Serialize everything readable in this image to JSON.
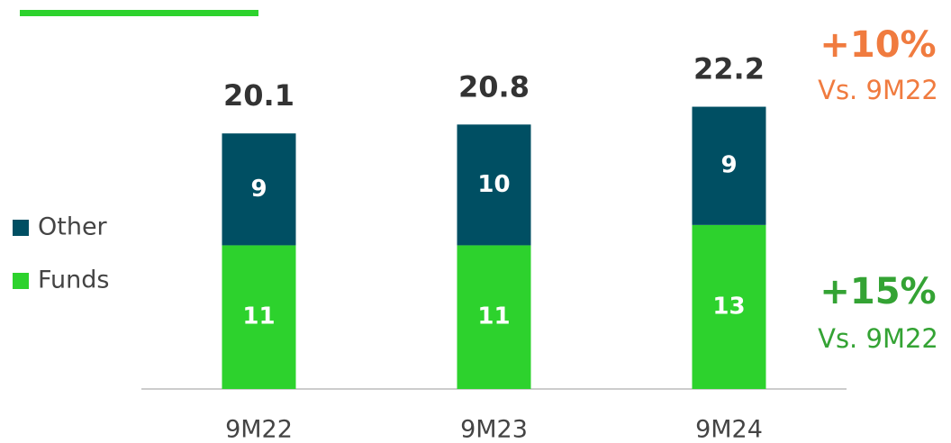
{
  "chart_data": {
    "type": "stacked_bar",
    "categories": [
      "9M22",
      "9M23",
      "9M24"
    ],
    "series": [
      {
        "name": "Funds",
        "color": "#2dd22d",
        "values": [
          11.3,
          11.3,
          12.9
        ],
        "value_labels": [
          "11",
          "11",
          "13"
        ]
      },
      {
        "name": "Other",
        "color": "#004f63",
        "values": [
          8.8,
          9.5,
          9.3
        ],
        "value_labels": [
          "9",
          "10",
          "9"
        ]
      }
    ],
    "totals": [
      20.1,
      20.8,
      22.2
    ],
    "ylim": [
      0,
      25
    ],
    "annotations": [
      {
        "text": "+10%",
        "color": "#f07b3f"
      },
      {
        "text": "Vs. 9M22",
        "color": "#f07b3f"
      },
      {
        "text": "+15%",
        "color": "#34a334"
      },
      {
        "text": "Vs. 9M22",
        "color": "#34a334"
      }
    ]
  }
}
